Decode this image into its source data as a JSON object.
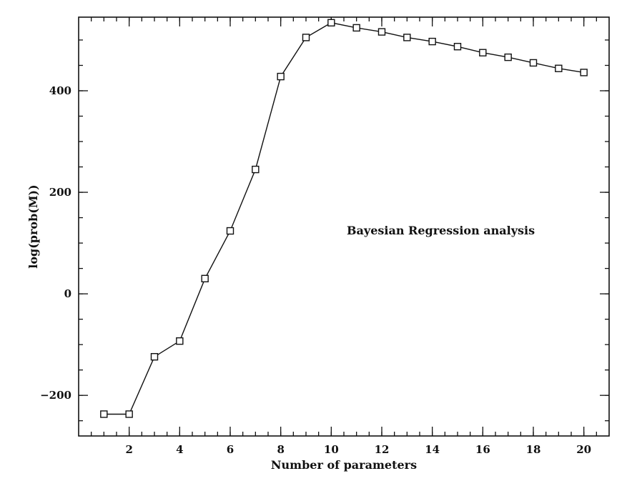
{
  "chart_data": {
    "type": "line",
    "title": "",
    "xlabel": "Number of parameters",
    "ylabel": "log(prob(M))",
    "annotation": "Bayesian Regression analysis",
    "xlim": [
      0,
      21
    ],
    "ylim": [
      -280,
      545
    ],
    "xticks": [
      2,
      4,
      6,
      8,
      10,
      12,
      14,
      16,
      18,
      20
    ],
    "yticks": [
      -200,
      0,
      200,
      400
    ],
    "grid": false,
    "marker": "square",
    "series": [
      {
        "x": [
          1,
          2,
          3,
          4,
          5,
          6,
          7,
          8,
          9,
          10,
          11,
          12,
          13,
          14,
          15,
          16,
          17,
          18,
          19,
          20
        ],
        "values": [
          -237,
          -237,
          -124,
          -93,
          30,
          124,
          245,
          428,
          505,
          534,
          524,
          516,
          505,
          497,
          487,
          475,
          466,
          455,
          444,
          436
        ]
      }
    ]
  }
}
